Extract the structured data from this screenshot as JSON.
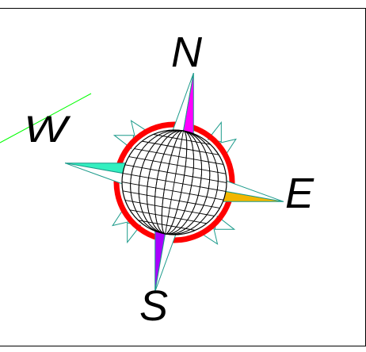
{
  "compass": {
    "labels": {
      "north": "N",
      "east": "E",
      "south": "S",
      "west": "W"
    },
    "colors": {
      "ring": "#ff0000",
      "globe_lines": "#000000",
      "outline": "#1a9a8a",
      "north_fill": "#ff00ff",
      "east_fill": "#f2b600",
      "south_fill": "#aa00ff",
      "west_fill": "#33f0c0",
      "stray_line": "#00ff00",
      "frame": "#000000"
    }
  }
}
